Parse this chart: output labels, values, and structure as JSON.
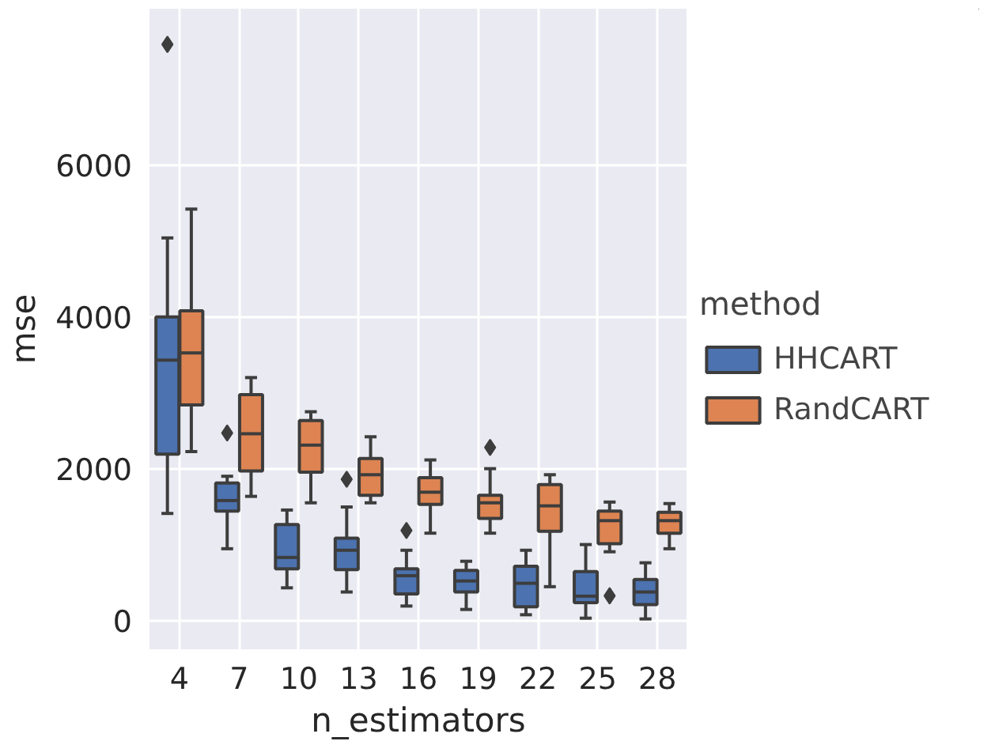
{
  "chart_data": {
    "type": "box",
    "xlabel": "n_estimators",
    "ylabel": "mse",
    "legend_title": "method",
    "categories": [
      "4",
      "7",
      "10",
      "13",
      "16",
      "19",
      "22",
      "25",
      "28"
    ],
    "ylim": [
      -380,
      8060
    ],
    "yticks": [
      0,
      2000,
      4000,
      6000
    ],
    "grid": true,
    "legend": "right",
    "series": [
      {
        "name": "HHCART",
        "color": "#4c72b0",
        "boxes": [
          {
            "low": 1410,
            "q1": 2190,
            "median": 3430,
            "q3": 4000,
            "high": 5040,
            "outliers": [
              7590
            ]
          },
          {
            "low": 945,
            "q1": 1440,
            "median": 1580,
            "q3": 1810,
            "high": 1900,
            "outliers": [
              2470
            ]
          },
          {
            "low": 430,
            "q1": 680,
            "median": 830,
            "q3": 1265,
            "high": 1455
          },
          {
            "low": 375,
            "q1": 670,
            "median": 925,
            "q3": 1085,
            "high": 1495,
            "outliers": [
              1860
            ]
          },
          {
            "low": 190,
            "q1": 350,
            "median": 590,
            "q3": 680,
            "high": 925,
            "outliers": [
              1185
            ]
          },
          {
            "low": 145,
            "q1": 375,
            "median": 520,
            "q3": 660,
            "high": 780
          },
          {
            "low": 75,
            "q1": 180,
            "median": 490,
            "q3": 715,
            "high": 925
          },
          {
            "low": 30,
            "q1": 235,
            "median": 320,
            "q3": 645,
            "high": 1000
          },
          {
            "low": 20,
            "q1": 210,
            "median": 375,
            "q3": 540,
            "high": 760
          }
        ]
      },
      {
        "name": "RandCART",
        "color": "#dd8452",
        "boxes": [
          {
            "low": 2225,
            "q1": 2840,
            "median": 3525,
            "q3": 4080,
            "high": 5420
          },
          {
            "low": 1635,
            "q1": 1970,
            "median": 2460,
            "q3": 2975,
            "high": 3200
          },
          {
            "low": 1550,
            "q1": 1955,
            "median": 2310,
            "q3": 2635,
            "high": 2750
          },
          {
            "low": 1550,
            "q1": 1650,
            "median": 1920,
            "q3": 2135,
            "high": 2420
          },
          {
            "low": 1150,
            "q1": 1530,
            "median": 1690,
            "q3": 1880,
            "high": 2115
          },
          {
            "low": 1150,
            "q1": 1345,
            "median": 1550,
            "q3": 1650,
            "high": 2000,
            "outliers": [
              2280
            ]
          },
          {
            "low": 445,
            "q1": 1175,
            "median": 1510,
            "q3": 1790,
            "high": 1920
          },
          {
            "low": 905,
            "q1": 1010,
            "median": 1315,
            "q3": 1440,
            "high": 1560,
            "outliers": [
              325
            ]
          },
          {
            "low": 945,
            "q1": 1150,
            "median": 1315,
            "q3": 1425,
            "high": 1540
          }
        ]
      }
    ]
  }
}
